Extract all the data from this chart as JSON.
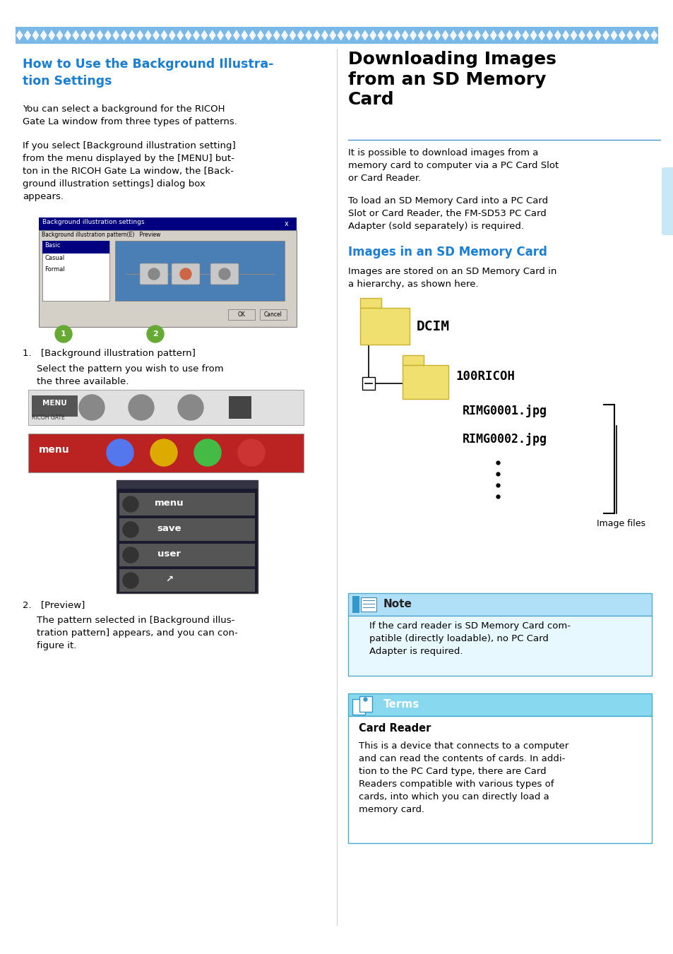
{
  "page_bg": "#ffffff",
  "top_bar_color": "#7ab8e8",
  "heading_color_blue": "#1a7fd4",
  "heading_color_black": "#000000",
  "body_text_color": "#000000",
  "section_line_color": "#4499cc",
  "tab_color": "#c8e8f5",
  "folder_fill": "#f0e070",
  "folder_edge": "#c8b030",
  "note_bg_top": "#b8e8f8",
  "note_bg_bot": "#e8f8ff",
  "note_border": "#44aadd",
  "terms_bg": "#88ddee",
  "terms_border": "#44aadd",
  "left_heading": "How to Use the Background Illustra-\ntion Settings",
  "left_para1": "You can select a background for the RICOH\nGate La window from three types of patterns.",
  "left_para2": "If you select [Background illustration setting]\nfrom the menu displayed by the [MENU] but-\nton in the RICOH Gate La window, the [Back-\nground illustration settings] dialog box\nappears.",
  "item1_head": "1. [Background illustration pattern]",
  "item1_body": "Select the pattern you wish to use from\nthe three available.",
  "item2_head": "2. [Preview]",
  "item2_body": "The pattern selected in [Background illus-\ntration pattern] appears, and you can con-\nfigure it.",
  "right_heading": "Downloading Images\nfrom an SD Memory\nCard",
  "right_para1": "It is possible to download images from a\nmemory card to computer via a PC Card Slot\nor Card Reader.",
  "right_para2": "To load an SD Memory Card into a PC Card\nSlot or Card Reader, the FM-SD53 PC Card\nAdapter (sold separately) is required.",
  "right_subheading": "Images in an SD Memory Card",
  "right_sub_para": "Images are stored on an SD Memory Card in\na hierarchy, as shown here.",
  "dcim_label": "DCIM",
  "ricoh_label": "100RICOH",
  "img1_label": "RIMG0001.jpg",
  "img2_label": "RIMG0002.jpg",
  "image_files_label": "Image files",
  "note_title": "Note",
  "note_body": "If the card reader is SD Memory Card com-\npatible (directly loadable), no PC Card\nAdapter is required.",
  "terms_title": "Terms",
  "terms_heading": "Card Reader",
  "terms_body": "This is a device that connects to a computer\nand can read the contents of cards. In addi-\ntion to the PC Card type, there are Card\nReaders compatible with various types of\ncards, into which you can directly load a\nmemory card."
}
